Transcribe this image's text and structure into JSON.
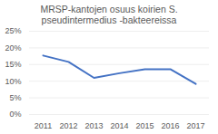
{
  "chart_data": {
    "type": "line",
    "title": "MRSP-kantojen osuus koirien S. pseudintermedius -bakteereissa",
    "categories": [
      "2011",
      "2012",
      "2013",
      "2014",
      "2015",
      "2016",
      "2017"
    ],
    "values": [
      17.7,
      15.8,
      11.0,
      12.4,
      13.6,
      13.6,
      9.2
    ],
    "color": "#4472c4",
    "ylim": [
      0,
      25
    ],
    "yticks": [
      {
        "value": 0,
        "label": "0%"
      },
      {
        "value": 5,
        "label": "5%"
      },
      {
        "value": 10,
        "label": "10%"
      },
      {
        "value": 15,
        "label": "15%"
      },
      {
        "value": 20,
        "label": "20%"
      },
      {
        "value": 25,
        "label": "25%"
      }
    ],
    "grid": true
  }
}
